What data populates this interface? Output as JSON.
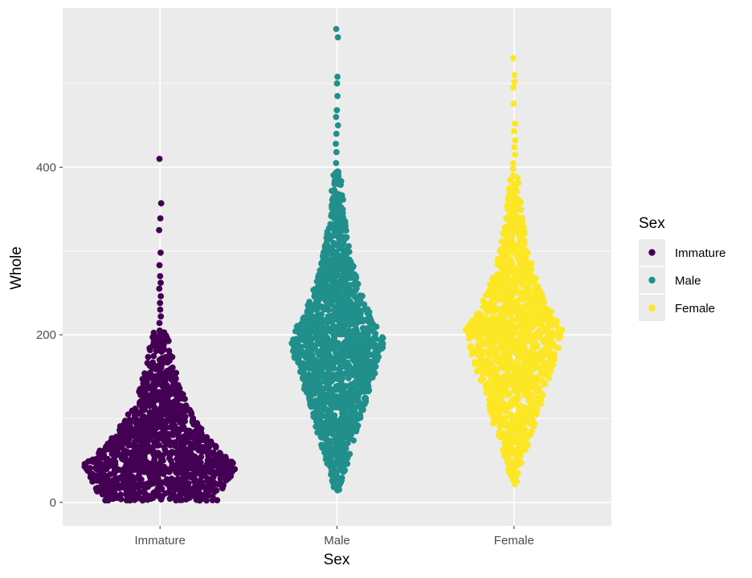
{
  "chart_data": {
    "type": "scatter",
    "subtype": "beeswarm",
    "title": "",
    "xlabel": "Sex",
    "ylabel": "Whole",
    "categories": [
      "Immature",
      "Male",
      "Female"
    ],
    "y_ticks": [
      0,
      200,
      400
    ],
    "ylim": [
      -28,
      590
    ],
    "grid": true,
    "legend": {
      "title": "Sex",
      "placement": "right",
      "entries": [
        "Immature",
        "Male",
        "Female"
      ]
    },
    "series": [
      {
        "name": "Immature",
        "color": "#440154",
        "count": 1342,
        "y_range": [
          2,
          410
        ],
        "mode": 50,
        "outliers": [
          410,
          357,
          339,
          325,
          298,
          283,
          270,
          262,
          255,
          246,
          238,
          230,
          222,
          214,
          205
        ]
      },
      {
        "name": "Male",
        "color": "#21908C",
        "count": 1528,
        "y_range": [
          5,
          565
        ],
        "mode": 200,
        "outliers": [
          565,
          555,
          508,
          500,
          485,
          468,
          460,
          450,
          440,
          428,
          418,
          405,
          395
        ]
      },
      {
        "name": "Female",
        "color": "#FDE725",
        "count": 1307,
        "y_range": [
          15,
          530
        ],
        "mode": 210,
        "outliers": [
          530,
          510,
          502,
          495,
          476,
          452,
          443,
          432,
          424,
          415,
          405,
          398,
          390
        ]
      }
    ]
  }
}
